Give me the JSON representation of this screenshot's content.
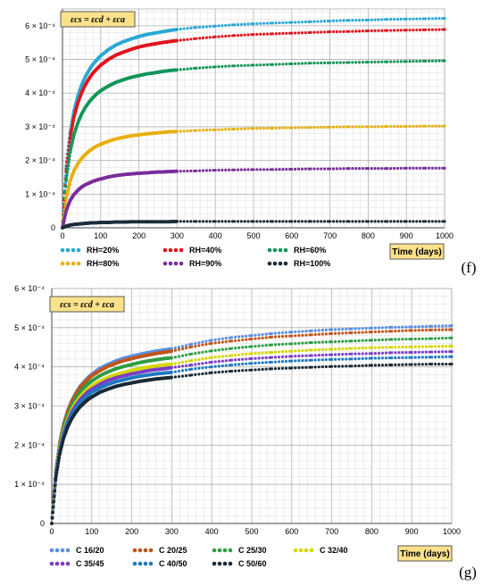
{
  "chart_data": [
    {
      "type": "scatter",
      "panel_label": "(f)",
      "formula": "εcs = εcd + εca",
      "xlabel": "Time (days)",
      "xlim": [
        0,
        1000
      ],
      "ylim": [
        0,
        0.00065
      ],
      "x_ticks": [
        "0",
        "100",
        "200",
        "300",
        "400",
        "500",
        "600",
        "700",
        "800",
        "900",
        "1000"
      ],
      "y_ticks": [
        "0",
        "1 × 10⁻⁴",
        "2 × 10⁻⁴",
        "3 × 10⁻⁴",
        "4 × 10⁻⁴",
        "5 × 10⁻⁴",
        "6 × 10⁻⁴"
      ],
      "grid": true,
      "legend_position": "bottom",
      "x": [
        0,
        10,
        20,
        30,
        40,
        50,
        60,
        70,
        80,
        90,
        100,
        120,
        140,
        160,
        180,
        200,
        220,
        240,
        260,
        280,
        300,
        350,
        400,
        450,
        500,
        550,
        600,
        650,
        700,
        750,
        800,
        850,
        900,
        950,
        1000
      ],
      "series": [
        {
          "name": "RH=20%",
          "color": "#2aa9d6",
          "values": [
            0.0,
            0.000183,
            0.000283,
            0.000347,
            0.000391,
            0.000424,
            0.000449,
            0.000469,
            0.000486,
            0.000499,
            0.000511,
            0.000529,
            0.000543,
            0.000553,
            0.000561,
            0.000568,
            0.000574,
            0.000578,
            0.000582,
            0.000586,
            0.000589,
            0.000595,
            0.000599,
            0.000603,
            0.000606,
            0.000608,
            0.00061,
            0.000612,
            0.000614,
            0.000616,
            0.000617,
            0.000619,
            0.00062,
            0.000621,
            0.000622
          ]
        },
        {
          "name": "RH=40%",
          "color": "#e0161e",
          "values": [
            0.0,
            0.000173,
            0.000268,
            0.000329,
            0.00037,
            0.000401,
            0.000425,
            0.000444,
            0.00046,
            0.000472,
            0.000483,
            0.0005,
            0.000513,
            0.000522,
            0.00053,
            0.000537,
            0.000542,
            0.000546,
            0.00055,
            0.000553,
            0.000556,
            0.000562,
            0.000567,
            0.000571,
            0.000574,
            0.000576,
            0.000578,
            0.00058,
            0.000582,
            0.000583,
            0.000585,
            0.000586,
            0.000587,
            0.000588,
            0.000589
          ]
        },
        {
          "name": "RH=60%",
          "color": "#14965a",
          "values": [
            0.0,
            0.000146,
            0.000226,
            0.000277,
            0.000311,
            0.000338,
            0.000358,
            0.000374,
            0.000387,
            0.000398,
            0.000407,
            0.000421,
            0.000432,
            0.00044,
            0.000447,
            0.000452,
            0.000457,
            0.00046,
            0.000464,
            0.000467,
            0.000469,
            0.000474,
            0.000478,
            0.000481,
            0.000483,
            0.000485,
            0.000487,
            0.000489,
            0.00049,
            0.000491,
            0.000492,
            0.000493,
            0.000494,
            0.000495,
            0.000496
          ]
        },
        {
          "name": "RH=80%",
          "color": "#e8b010",
          "values": [
            0.0,
            8.9e-05,
            0.000138,
            0.000169,
            0.00019,
            0.000206,
            0.000218,
            0.000228,
            0.000236,
            0.000243,
            0.000248,
            0.000257,
            0.000264,
            0.000269,
            0.000273,
            0.000276,
            0.000279,
            0.000281,
            0.000283,
            0.000285,
            0.000286,
            0.000289,
            0.000291,
            0.000293,
            0.000295,
            0.000296,
            0.000297,
            0.000298,
            0.000299,
            0.0003,
            0.0003,
            0.000301,
            0.000301,
            0.000302,
            0.000302
          ]
        },
        {
          "name": "RH=90%",
          "color": "#7a2e9c",
          "values": [
            0.0,
            5.2e-05,
            8.1e-05,
            9.9e-05,
            0.000111,
            0.000121,
            0.000128,
            0.000133,
            0.000138,
            0.000142,
            0.000145,
            0.000151,
            0.000155,
            0.000158,
            0.00016,
            0.000162,
            0.000163,
            0.000165,
            0.000166,
            0.000167,
            0.000168,
            0.000169,
            0.000171,
            0.000172,
            0.000173,
            0.000173,
            0.000174,
            0.000175,
            0.000175,
            0.000176,
            0.000176,
            0.000176,
            0.000177,
            0.000177,
            0.000177
          ]
        },
        {
          "name": "RH=100%",
          "color": "#1c2e3a",
          "values": [
            0.0,
            5e-06,
            8e-06,
            1e-05,
            1.1e-05,
            1.2e-05,
            1.3e-05,
            1.4e-05,
            1.5e-05,
            1.5e-05,
            1.6e-05,
            1.6e-05,
            1.7e-05,
            1.7e-05,
            1.8e-05,
            1.8e-05,
            1.8e-05,
            1.8e-05,
            1.8e-05,
            1.8e-05,
            1.9e-05,
            1.9e-05,
            1.9e-05,
            1.9e-05,
            1.9e-05,
            1.9e-05,
            1.9e-05,
            1.9e-05,
            1.9e-05,
            1.9e-05,
            1.9e-05,
            1.9e-05,
            1.9e-05,
            1.9e-05,
            1.9e-05
          ]
        }
      ]
    },
    {
      "type": "scatter",
      "panel_label": "(g)",
      "formula": "εcs = εcd + εca",
      "xlabel": "Time (days)",
      "xlim": [
        0,
        1000
      ],
      "ylim": [
        0,
        0.0006
      ],
      "x_ticks": [
        "0",
        "100",
        "200",
        "300",
        "400",
        "500",
        "600",
        "700",
        "800",
        "900",
        "1000"
      ],
      "y_ticks": [
        "0",
        "1 × 10⁻⁴",
        "2 × 10⁻⁴",
        "3 × 10⁻⁴",
        "4 × 10⁻⁴",
        "5 × 10⁻⁴",
        "6 × 10⁻⁴"
      ],
      "grid": true,
      "legend_position": "bottom",
      "x": [
        0,
        10,
        20,
        30,
        40,
        50,
        60,
        70,
        80,
        90,
        100,
        120,
        140,
        160,
        180,
        200,
        220,
        240,
        260,
        280,
        300,
        350,
        400,
        450,
        500,
        550,
        600,
        650,
        700,
        750,
        800,
        850,
        900,
        950,
        1000
      ],
      "series": [
        {
          "name": "C 16/20",
          "color": "#5b8fe0",
          "values": [
            0.0,
            0.000135,
            0.000208,
            0.000256,
            0.000289,
            0.000314,
            0.000333,
            0.000349,
            0.000361,
            0.000372,
            0.000381,
            0.000396,
            0.000406,
            0.000415,
            0.000422,
            0.000427,
            0.000432,
            0.000436,
            0.00044,
            0.000443,
            0.000446,
            0.000458,
            0.000468,
            0.000475,
            0.00048,
            0.000485,
            0.000489,
            0.000492,
            0.000495,
            0.000497,
            0.000499,
            0.000501,
            0.000502,
            0.000504,
            0.000505
          ]
        },
        {
          "name": "C 20/25",
          "color": "#c1551b",
          "values": [
            0.0,
            0.000133,
            0.000206,
            0.000253,
            0.000286,
            0.000311,
            0.00033,
            0.000346,
            0.000358,
            0.000368,
            0.000377,
            0.00039,
            0.000401,
            0.000409,
            0.000416,
            0.000421,
            0.000426,
            0.00043,
            0.000434,
            0.000437,
            0.00044,
            0.000451,
            0.00046,
            0.000466,
            0.000471,
            0.000476,
            0.000479,
            0.000482,
            0.000485,
            0.000487,
            0.000489,
            0.000491,
            0.000493,
            0.000494,
            0.000495
          ]
        },
        {
          "name": "C 25/30",
          "color": "#2f9e44",
          "values": [
            0.0,
            0.000129,
            0.000199,
            0.000245,
            0.000277,
            0.000301,
            0.000319,
            0.000334,
            0.000346,
            0.000356,
            0.000364,
            0.000377,
            0.000387,
            0.000395,
            0.000401,
            0.000406,
            0.000411,
            0.000415,
            0.000418,
            0.000421,
            0.000423,
            0.000433,
            0.000441,
            0.000447,
            0.000452,
            0.000456,
            0.000459,
            0.000462,
            0.000464,
            0.000466,
            0.000468,
            0.00047,
            0.000471,
            0.000472,
            0.000474
          ]
        },
        {
          "name": "C 32/40",
          "color": "#d6d600",
          "values": [
            0.0,
            0.000124,
            0.000192,
            0.000236,
            0.000267,
            0.00029,
            0.000308,
            0.000322,
            0.000334,
            0.000343,
            0.000351,
            0.000363,
            0.000373,
            0.00038,
            0.000386,
            0.000391,
            0.000396,
            0.000399,
            0.000402,
            0.000405,
            0.000407,
            0.000416,
            0.000424,
            0.000429,
            0.000434,
            0.000437,
            0.00044,
            0.000443,
            0.000445,
            0.000447,
            0.000449,
            0.00045,
            0.000451,
            0.000452,
            0.000453
          ]
        },
        {
          "name": "C 35/45",
          "color": "#7b3fc4",
          "values": [
            0.0,
            0.000122,
            0.000188,
            0.000231,
            0.000261,
            0.000284,
            0.000301,
            0.000315,
            0.000326,
            0.000336,
            0.000343,
            0.000355,
            0.000365,
            0.000372,
            0.000377,
            0.000382,
            0.000386,
            0.00039,
            0.000393,
            0.000395,
            0.000398,
            0.000405,
            0.000412,
            0.000417,
            0.000421,
            0.000424,
            0.000427,
            0.000429,
            0.000431,
            0.000433,
            0.000434,
            0.000436,
            0.000437,
            0.000438,
            0.000439
          ]
        },
        {
          "name": "C 40/50",
          "color": "#1f7ac0",
          "values": [
            0.0,
            0.000119,
            0.000184,
            0.000226,
            0.000255,
            0.000277,
            0.000294,
            0.000307,
            0.000318,
            0.000327,
            0.000335,
            0.000346,
            0.000355,
            0.000362,
            0.000367,
            0.000372,
            0.000376,
            0.000379,
            0.000382,
            0.000384,
            0.000386,
            0.000394,
            0.0004,
            0.000405,
            0.000409,
            0.000412,
            0.000415,
            0.000417,
            0.000419,
            0.00042,
            0.000422,
            0.000423,
            0.000424,
            0.000425,
            0.000426
          ]
        },
        {
          "name": "C 50/60",
          "color": "#1a2a36",
          "values": [
            0.0,
            0.000115,
            0.000178,
            0.000219,
            0.000247,
            0.000268,
            0.000284,
            0.000297,
            0.000307,
            0.000316,
            0.000323,
            0.000335,
            0.000343,
            0.00035,
            0.000355,
            0.000359,
            0.000363,
            0.000366,
            0.000369,
            0.000371,
            0.000373,
            0.000379,
            0.000385,
            0.000389,
            0.000392,
            0.000395,
            0.000397,
            0.000399,
            0.000401,
            0.000402,
            0.000404,
            0.000405,
            0.000406,
            0.000407,
            0.000407
          ]
        }
      ]
    }
  ]
}
